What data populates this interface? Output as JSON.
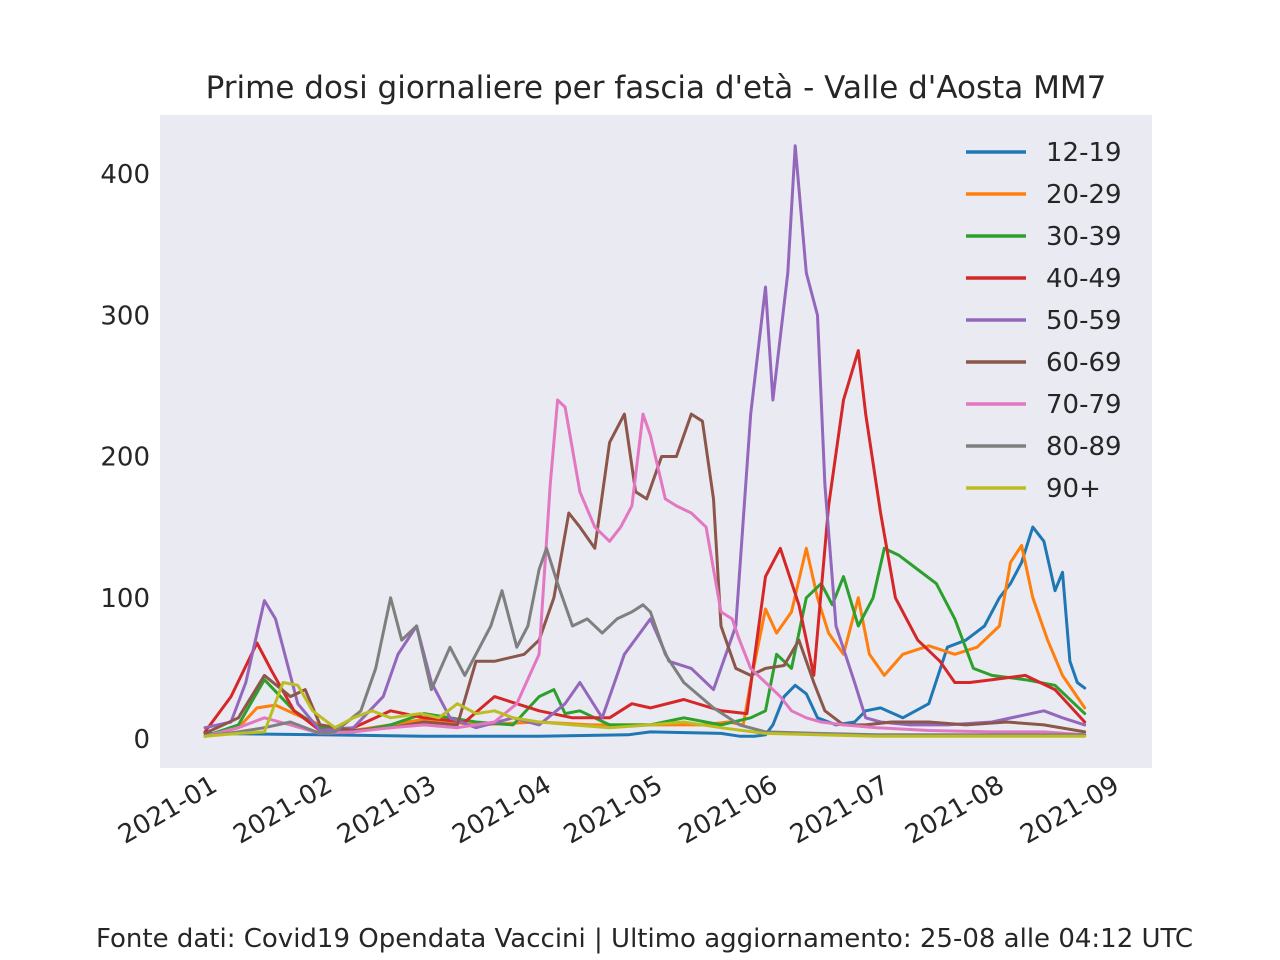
{
  "chart_data": {
    "type": "line",
    "title": "Prime dosi giornaliere per fascia d'età - Valle d'Aosta MM7",
    "xlabel": "",
    "ylabel": "",
    "xlim": [
      "2021-01-01",
      "2021-09-01"
    ],
    "ylim": [
      -20,
      440
    ],
    "yticks": [
      0,
      100,
      200,
      300,
      400
    ],
    "xticks": [
      "2021-01",
      "2021-02",
      "2021-03",
      "2021-04",
      "2021-05",
      "2021-06",
      "2021-07",
      "2021-08",
      "2021-09"
    ],
    "grid": false,
    "legend_position": "top-right",
    "background": "#eaeaf2",
    "series": [
      {
        "name": "12-19",
        "color": "#1f77b4",
        "x": [
          "2021-01-01",
          "2021-02-01",
          "2021-03-01",
          "2021-04-01",
          "2021-04-25",
          "2021-05-01",
          "2021-05-20",
          "2021-05-25",
          "2021-05-29",
          "2021-06-01",
          "2021-06-03",
          "2021-06-06",
          "2021-06-09",
          "2021-06-12",
          "2021-06-15",
          "2021-06-20",
          "2021-06-25",
          "2021-06-28",
          "2021-07-02",
          "2021-07-08",
          "2021-07-15",
          "2021-07-20",
          "2021-07-25",
          "2021-07-30",
          "2021-08-03",
          "2021-08-06",
          "2021-08-09",
          "2021-08-12",
          "2021-08-15",
          "2021-08-18",
          "2021-08-20",
          "2021-08-22",
          "2021-08-24",
          "2021-08-26"
        ],
        "y": [
          4,
          3,
          2,
          2,
          3,
          5,
          4,
          2,
          2,
          3,
          10,
          30,
          38,
          32,
          15,
          10,
          12,
          20,
          22,
          15,
          25,
          65,
          70,
          80,
          100,
          110,
          125,
          150,
          140,
          105,
          118,
          55,
          40,
          36
        ]
      },
      {
        "name": "20-29",
        "color": "#ff7f0e",
        "x": [
          "2021-01-01",
          "2021-01-10",
          "2021-01-15",
          "2021-01-20",
          "2021-01-25",
          "2021-02-01",
          "2021-02-10",
          "2021-02-20",
          "2021-03-01",
          "2021-03-15",
          "2021-04-01",
          "2021-04-15",
          "2021-05-01",
          "2021-05-15",
          "2021-05-22",
          "2021-05-26",
          "2021-05-28",
          "2021-06-01",
          "2021-06-04",
          "2021-06-08",
          "2021-06-12",
          "2021-06-15",
          "2021-06-18",
          "2021-06-22",
          "2021-06-26",
          "2021-06-29",
          "2021-07-03",
          "2021-07-08",
          "2021-07-15",
          "2021-07-22",
          "2021-07-28",
          "2021-08-03",
          "2021-08-06",
          "2021-08-09",
          "2021-08-12",
          "2021-08-16",
          "2021-08-20",
          "2021-08-26"
        ],
        "y": [
          2,
          8,
          22,
          24,
          18,
          10,
          6,
          10,
          14,
          10,
          12,
          10,
          10,
          10,
          12,
          10,
          40,
          92,
          75,
          90,
          135,
          100,
          75,
          60,
          100,
          60,
          45,
          60,
          66,
          60,
          65,
          80,
          125,
          137,
          100,
          70,
          45,
          22
        ]
      },
      {
        "name": "30-39",
        "color": "#2ca02c",
        "x": [
          "2021-01-01",
          "2021-01-10",
          "2021-01-17",
          "2021-01-25",
          "2021-02-01",
          "2021-02-10",
          "2021-02-20",
          "2021-03-01",
          "2021-03-15",
          "2021-03-25",
          "2021-04-01",
          "2021-04-05",
          "2021-04-08",
          "2021-04-12",
          "2021-04-20",
          "2021-05-01",
          "2021-05-10",
          "2021-05-20",
          "2021-05-28",
          "2021-06-01",
          "2021-06-04",
          "2021-06-08",
          "2021-06-12",
          "2021-06-16",
          "2021-06-19",
          "2021-06-22",
          "2021-06-26",
          "2021-06-30",
          "2021-07-03",
          "2021-07-07",
          "2021-07-12",
          "2021-07-17",
          "2021-07-22",
          "2021-07-27",
          "2021-08-01",
          "2021-08-10",
          "2021-08-18",
          "2021-08-26"
        ],
        "y": [
          2,
          10,
          42,
          20,
          8,
          5,
          10,
          18,
          12,
          10,
          30,
          35,
          18,
          20,
          10,
          10,
          15,
          10,
          15,
          20,
          60,
          50,
          100,
          110,
          95,
          115,
          80,
          100,
          135,
          130,
          120,
          110,
          85,
          50,
          45,
          42,
          38,
          18
        ]
      },
      {
        "name": "40-49",
        "color": "#d62728",
        "x": [
          "2021-01-01",
          "2021-01-08",
          "2021-01-15",
          "2021-01-19",
          "2021-01-25",
          "2021-02-01",
          "2021-02-10",
          "2021-02-20",
          "2021-03-01",
          "2021-03-12",
          "2021-03-20",
          "2021-04-01",
          "2021-04-10",
          "2021-04-20",
          "2021-04-26",
          "2021-05-01",
          "2021-05-10",
          "2021-05-20",
          "2021-05-27",
          "2021-06-01",
          "2021-06-05",
          "2021-06-10",
          "2021-06-14",
          "2021-06-18",
          "2021-06-22",
          "2021-06-26",
          "2021-06-28",
          "2021-07-02",
          "2021-07-06",
          "2021-07-12",
          "2021-07-18",
          "2021-07-22",
          "2021-07-26",
          "2021-08-01",
          "2021-08-10",
          "2021-08-18",
          "2021-08-26"
        ],
        "y": [
          5,
          30,
          68,
          48,
          20,
          6,
          8,
          20,
          15,
          12,
          30,
          20,
          15,
          15,
          25,
          22,
          28,
          20,
          18,
          115,
          135,
          95,
          45,
          165,
          240,
          275,
          230,
          160,
          100,
          70,
          55,
          40,
          40,
          42,
          45,
          35,
          12
        ]
      },
      {
        "name": "50-59",
        "color": "#9467bd",
        "x": [
          "2021-01-01",
          "2021-01-08",
          "2021-01-12",
          "2021-01-17",
          "2021-01-20",
          "2021-01-26",
          "2021-02-01",
          "2021-02-10",
          "2021-02-18",
          "2021-02-22",
          "2021-02-27",
          "2021-03-03",
          "2021-03-08",
          "2021-03-15",
          "2021-03-25",
          "2021-04-01",
          "2021-04-08",
          "2021-04-12",
          "2021-04-18",
          "2021-04-24",
          "2021-05-01",
          "2021-05-06",
          "2021-05-12",
          "2021-05-18",
          "2021-05-24",
          "2021-05-28",
          "2021-06-01",
          "2021-06-03",
          "2021-06-07",
          "2021-06-09",
          "2021-06-12",
          "2021-06-15",
          "2021-06-17",
          "2021-06-20",
          "2021-06-25",
          "2021-06-28",
          "2021-07-02",
          "2021-07-10",
          "2021-07-20",
          "2021-08-01",
          "2021-08-15",
          "2021-08-20",
          "2021-08-26"
        ],
        "y": [
          8,
          12,
          40,
          98,
          85,
          25,
          6,
          8,
          30,
          60,
          80,
          40,
          15,
          8,
          15,
          10,
          25,
          40,
          15,
          60,
          85,
          55,
          50,
          35,
          80,
          230,
          320,
          240,
          330,
          420,
          330,
          300,
          180,
          80,
          40,
          15,
          12,
          10,
          10,
          12,
          20,
          15,
          10
        ]
      },
      {
        "name": "60-69",
        "color": "#8c564b",
        "x": [
          "2021-01-01",
          "2021-01-10",
          "2021-01-17",
          "2021-01-24",
          "2021-01-28",
          "2021-02-01",
          "2021-02-10",
          "2021-02-20",
          "2021-03-01",
          "2021-03-10",
          "2021-03-15",
          "2021-03-20",
          "2021-03-28",
          "2021-04-01",
          "2021-04-05",
          "2021-04-09",
          "2021-04-12",
          "2021-04-16",
          "2021-04-20",
          "2021-04-24",
          "2021-04-27",
          "2021-04-30",
          "2021-05-04",
          "2021-05-08",
          "2021-05-12",
          "2021-05-15",
          "2021-05-18",
          "2021-05-20",
          "2021-05-24",
          "2021-05-28",
          "2021-06-01",
          "2021-06-06",
          "2021-06-10",
          "2021-06-14",
          "2021-06-17",
          "2021-06-22",
          "2021-06-28",
          "2021-07-05",
          "2021-07-15",
          "2021-07-25",
          "2021-08-05",
          "2021-08-15",
          "2021-08-26"
        ],
        "y": [
          4,
          15,
          45,
          30,
          35,
          10,
          6,
          8,
          12,
          10,
          55,
          55,
          60,
          70,
          100,
          160,
          150,
          135,
          210,
          230,
          175,
          170,
          200,
          200,
          230,
          225,
          170,
          80,
          50,
          45,
          50,
          52,
          70,
          40,
          20,
          10,
          10,
          12,
          12,
          10,
          12,
          10,
          5
        ]
      },
      {
        "name": "70-79",
        "color": "#e377c2",
        "x": [
          "2021-01-01",
          "2021-01-10",
          "2021-01-17",
          "2021-01-24",
          "2021-02-01",
          "2021-02-10",
          "2021-02-20",
          "2021-03-01",
          "2021-03-10",
          "2021-03-20",
          "2021-03-26",
          "2021-04-01",
          "2021-04-04",
          "2021-04-06",
          "2021-04-08",
          "2021-04-12",
          "2021-04-16",
          "2021-04-20",
          "2021-04-23",
          "2021-04-26",
          "2021-04-29",
          "2021-05-01",
          "2021-05-05",
          "2021-05-08",
          "2021-05-12",
          "2021-05-16",
          "2021-05-20",
          "2021-05-23",
          "2021-05-25",
          "2021-05-28",
          "2021-06-01",
          "2021-06-05",
          "2021-06-08",
          "2021-06-12",
          "2021-06-16",
          "2021-06-22",
          "2021-07-01",
          "2021-07-15",
          "2021-08-01",
          "2021-08-15",
          "2021-08-26"
        ],
        "y": [
          2,
          8,
          15,
          10,
          4,
          5,
          8,
          10,
          8,
          12,
          25,
          60,
          180,
          240,
          235,
          175,
          150,
          140,
          150,
          165,
          230,
          215,
          170,
          165,
          160,
          150,
          90,
          85,
          70,
          50,
          40,
          30,
          20,
          15,
          12,
          10,
          8,
          6,
          5,
          5,
          3
        ]
      },
      {
        "name": "80-89",
        "color": "#7f7f7f",
        "x": [
          "2021-01-01",
          "2021-01-10",
          "2021-01-17",
          "2021-01-24",
          "2021-02-01",
          "2021-02-05",
          "2021-02-12",
          "2021-02-16",
          "2021-02-20",
          "2021-02-23",
          "2021-02-27",
          "2021-03-03",
          "2021-03-08",
          "2021-03-12",
          "2021-03-16",
          "2021-03-19",
          "2021-03-22",
          "2021-03-26",
          "2021-03-29",
          "2021-04-01",
          "2021-04-03",
          "2021-04-06",
          "2021-04-10",
          "2021-04-14",
          "2021-04-18",
          "2021-04-22",
          "2021-04-26",
          "2021-04-29",
          "2021-05-01",
          "2021-05-05",
          "2021-05-10",
          "2021-05-18",
          "2021-05-25",
          "2021-06-01",
          "2021-06-15",
          "2021-07-01",
          "2021-07-20",
          "2021-08-10",
          "2021-08-26"
        ],
        "y": [
          2,
          5,
          8,
          12,
          4,
          5,
          20,
          50,
          100,
          70,
          80,
          35,
          65,
          45,
          65,
          80,
          105,
          65,
          80,
          120,
          135,
          110,
          80,
          85,
          75,
          85,
          90,
          95,
          90,
          60,
          40,
          22,
          10,
          5,
          4,
          3,
          3,
          3,
          3
        ]
      },
      {
        "name": "90+",
        "color": "#bcbd22",
        "x": [
          "2021-01-01",
          "2021-01-10",
          "2021-01-17",
          "2021-01-22",
          "2021-01-26",
          "2021-01-30",
          "2021-02-05",
          "2021-02-10",
          "2021-02-15",
          "2021-02-20",
          "2021-02-28",
          "2021-03-05",
          "2021-03-10",
          "2021-03-15",
          "2021-03-20",
          "2021-03-25",
          "2021-04-01",
          "2021-04-10",
          "2021-04-20",
          "2021-05-01",
          "2021-05-10",
          "2021-05-20",
          "2021-06-01",
          "2021-06-15",
          "2021-07-01",
          "2021-07-15",
          "2021-08-01",
          "2021-08-15",
          "2021-08-26"
        ],
        "y": [
          2,
          4,
          5,
          40,
          38,
          20,
          8,
          15,
          20,
          15,
          18,
          15,
          25,
          18,
          20,
          15,
          12,
          10,
          8,
          10,
          12,
          8,
          4,
          3,
          2,
          2,
          2,
          2,
          2
        ]
      }
    ]
  },
  "footer": "Fonte dati: Covid19 Opendata Vaccini | Ultimo aggiornamento: 25-08 alle 04:12 UTC"
}
